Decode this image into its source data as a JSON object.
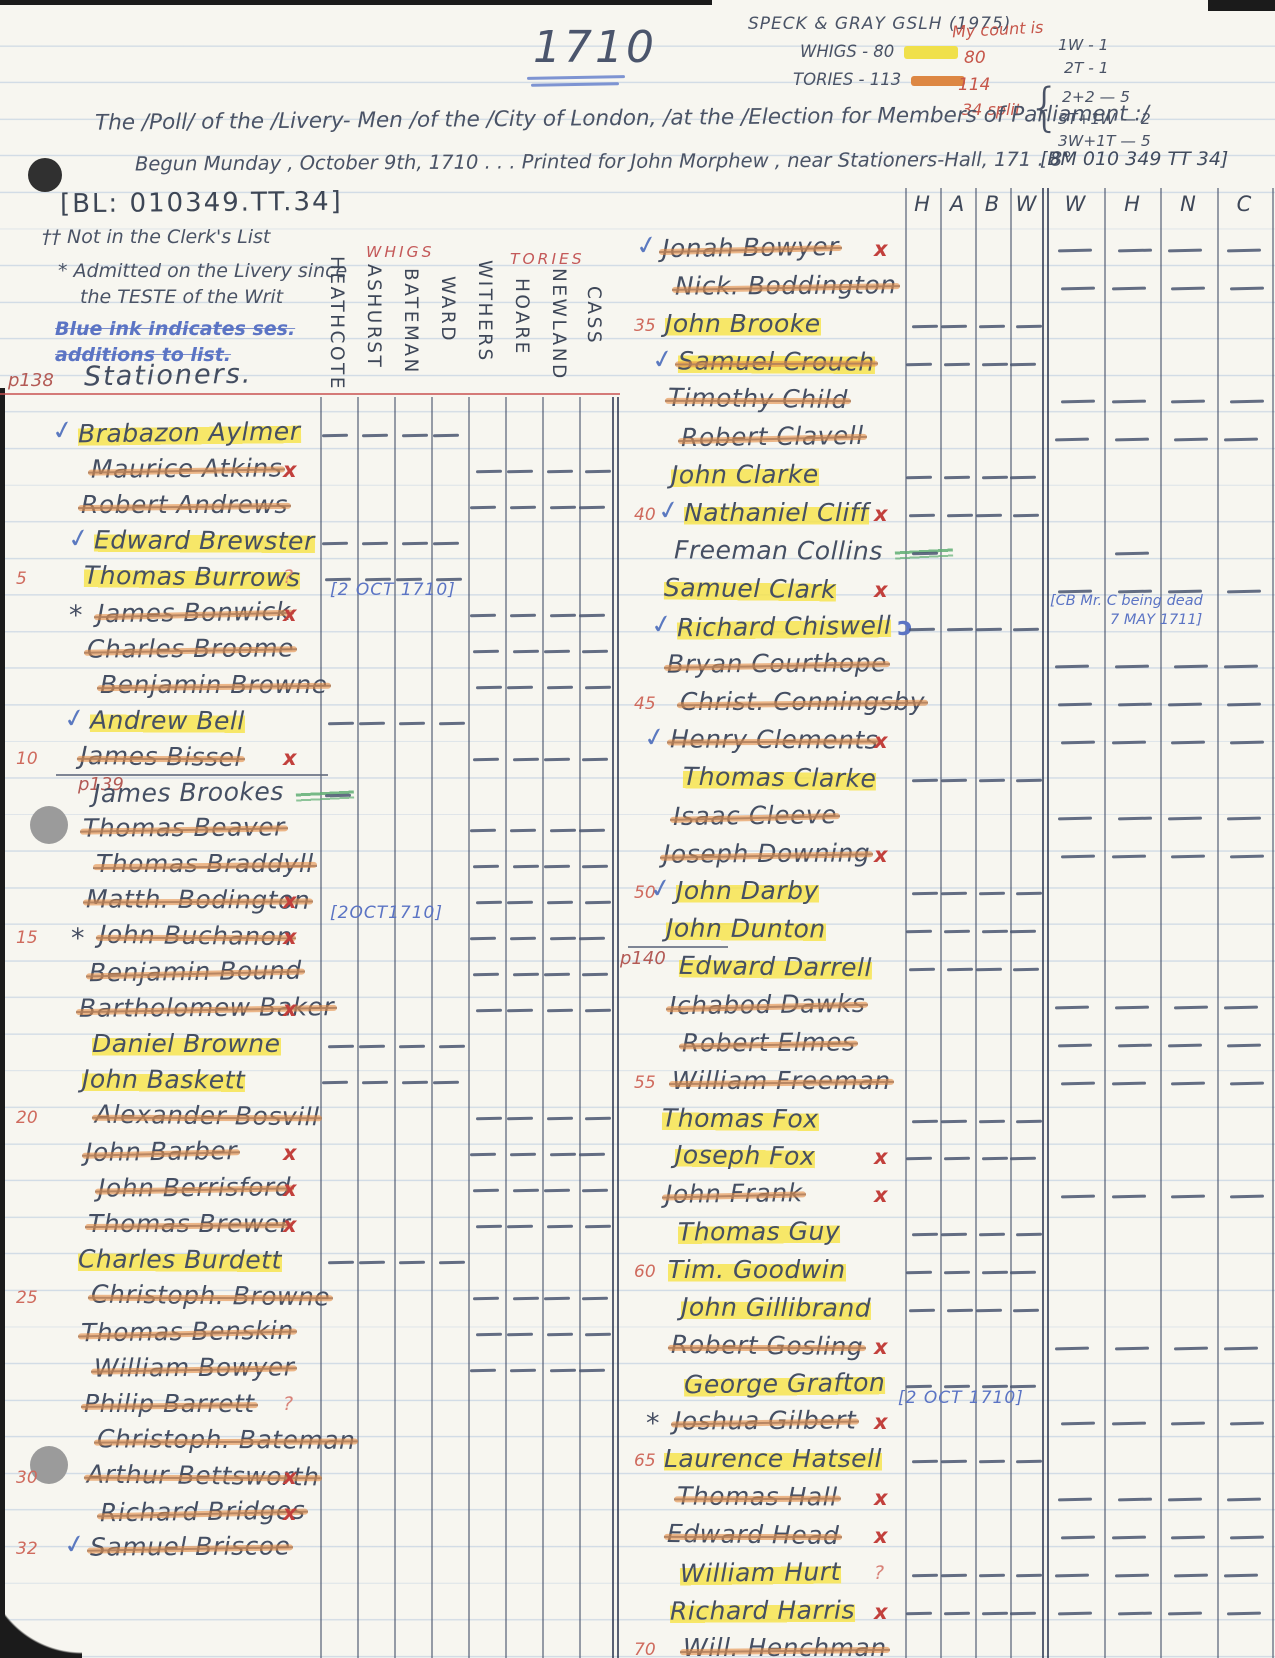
{
  "page": {
    "year_title": "1710",
    "top_right": {
      "source": "SPECK & GRAY  GSLH (1975)",
      "whigs_label": "WHIGS - 80",
      "tories_label": "TORIES - 113",
      "red_notes": [
        "My count is",
        "80",
        "114",
        "34 split"
      ],
      "brace": "{",
      "split_breakdown": [
        "2+2  — 5",
        "3T+1W  — 2",
        "3W+1T — 5"
      ],
      "pencil_tallies": [
        "1W - 1",
        "2T - 1"
      ]
    },
    "title_line1": "The /Poll/ of the /Livery- Men /of the /City of London, /at the /Election for Members of Parliament :/",
    "title_line2": "Begun Munday , October 9th, 1710 . . .  Printed for John Morphew , near Stationers-Hall, 171    . 8°",
    "title_shelfmark_bm": "[BM 010 349 TT 34]",
    "shelfmark_bl": "[BL: 010349.TT.34]",
    "legend": {
      "dagger_note": "†† Not in the Clerk's List",
      "star_note_line1": "* Admitted on the Livery since",
      "star_note_line2": "the TESTE of the Writ",
      "blue_note_line1": "Blue ink indicates ses.",
      "blue_note_line2": "additions to list."
    },
    "page_label": "p138",
    "company": "Stationers.",
    "whig_header": "WHIGS",
    "tory_header": "TORIES",
    "whig_candidates": [
      "HEATHCOTE",
      "ASHURST",
      "BATEMAN",
      "WARD"
    ],
    "tory_candidates": [
      "WITHERS",
      "HOARE",
      "NEWLAND",
      "CASS"
    ],
    "right_grid_headers_narrow": [
      "H",
      "A",
      "B",
      "W"
    ],
    "right_grid_headers_wide": [
      "W",
      "H",
      "N",
      "C"
    ],
    "chiswell_note": [
      "[CB Mr. C being dead",
      "7 MAY 1711]"
    ]
  },
  "colors": {
    "yellow_highlight": "#f4e24f",
    "orange_strike": "#e2873f",
    "red_ink": "#c2403c",
    "blue_ink": "#5b74c4",
    "green_mark": "#5fae73",
    "pencil": "#49536a"
  },
  "voters_left": [
    {
      "name": "Brabazon Aylmer",
      "ck": 1,
      "hl": 1,
      "v": "W"
    },
    {
      "name": "Maurice Atkins",
      "st": 1,
      "mk": "x",
      "v": "T"
    },
    {
      "name": "Robert Andrews",
      "st": 1,
      "v": "T"
    },
    {
      "name": "Edward Brewster",
      "ck": 1,
      "hl": 1,
      "v": "W"
    },
    {
      "n": "5",
      "name": "Thomas Burrows",
      "hl": 1,
      "mk": "?",
      "v": "W"
    },
    {
      "name": "James Bonwick",
      "star": 1,
      "st": 1,
      "mk": "x",
      "v": "T",
      "note": "[2 OCT 1710]"
    },
    {
      "name": "Charles Broome",
      "st": 1,
      "v": "T"
    },
    {
      "name": "Benjamin Browne",
      "st": 1,
      "v": "T"
    },
    {
      "name": "Andrew Bell",
      "ck": 1,
      "hl": 1,
      "v": "W"
    },
    {
      "n": "10",
      "name": "James Bissel",
      "st": 1,
      "mk": "x",
      "ul": 1,
      "v": "T"
    },
    {
      "p": "p139",
      "name": "James Brookes",
      "gr": 1,
      "v": [
        1,
        0,
        0,
        0,
        0,
        0,
        0,
        0
      ]
    },
    {
      "name": "Thomas Beaver",
      "st": 1,
      "v": "T"
    },
    {
      "name": "Thomas Braddyll",
      "st": 1,
      "v": "T"
    },
    {
      "name": "Matth. Bodington",
      "st": 1,
      "mk": "x",
      "v": "T"
    },
    {
      "n": "15",
      "name": "John Buchanon",
      "star": 1,
      "st": 1,
      "mk": "x",
      "v": "T",
      "note": "[2OCT1710]"
    },
    {
      "name": "Benjamin Bound",
      "st": 1,
      "v": "T"
    },
    {
      "name": "Bartholomew Baker",
      "st": 1,
      "mk": "x",
      "v": "T"
    },
    {
      "name": "Daniel Browne",
      "hl": 1,
      "v": "W"
    },
    {
      "name": "John Baskett",
      "hl": 1,
      "v": "W"
    },
    {
      "n": "20",
      "name": "Alexander Bosvill",
      "st": 1,
      "v": "T"
    },
    {
      "name": "John Barber",
      "st": 1,
      "mk": "x",
      "v": "T"
    },
    {
      "name": "John Berrisford",
      "st": 1,
      "mk": "x",
      "v": "T"
    },
    {
      "name": "Thomas Brewer",
      "st": 1,
      "mk": "x",
      "v": "T"
    },
    {
      "name": "Charles Burdett",
      "hl": 1,
      "v": "W"
    },
    {
      "n": "25",
      "name": "Christoph. Browne",
      "st": 1,
      "v": "T"
    },
    {
      "name": "Thomas Benskin",
      "st": 1,
      "v": "T"
    },
    {
      "name": "William Bowyer",
      "st": 1,
      "v": "T"
    },
    {
      "name": "Philip Barrett",
      "st": 1,
      "mk": "?",
      "v": "N"
    },
    {
      "name": "Christoph. Bateman",
      "st": 1,
      "v": "N"
    },
    {
      "n": "30",
      "name": "Arthur Bettsworth",
      "st": 1,
      "mk": "x",
      "v": "N"
    },
    {
      "name": "Richard Bridges",
      "st": 1,
      "mk": "x",
      "v": "N"
    },
    {
      "n": "32",
      "name": "Samuel Briscoe",
      "ck": 1,
      "st": 1,
      "v": "N"
    }
  ],
  "voters_right": [
    {
      "name": "Jonah Bowyer",
      "ck": 1,
      "st": 1,
      "mk": "x",
      "v": "T"
    },
    {
      "name": "Nick. Boddington",
      "st": 1,
      "v": "T"
    },
    {
      "n": "35",
      "name": "John Brooke",
      "hl": 1,
      "v": "W"
    },
    {
      "name": "Samuel Crouch",
      "ck": 1,
      "hl": 1,
      "st": 1,
      "v": "W"
    },
    {
      "name": "Timothy Child",
      "st": 1,
      "v": "T"
    },
    {
      "name": "Robert Clavell",
      "st": 1,
      "v": "T"
    },
    {
      "name": "John Clarke",
      "hl": 1,
      "v": "W"
    },
    {
      "n": "40",
      "name": "Nathaniel Cliff",
      "ck": 1,
      "hl": 1,
      "mk": "x",
      "v": "W"
    },
    {
      "name": "Freeman Collins",
      "gr": 1,
      "v": [
        1,
        0,
        0,
        0,
        0,
        1,
        0,
        0
      ]
    },
    {
      "name": "Samuel Clark",
      "hl": 1,
      "mk": "x",
      "v": "T"
    },
    {
      "name": "Richard Chiswell",
      "ck": 1,
      "hl": 1,
      "bm": 1,
      "v": "W",
      "cb": 1
    },
    {
      "name": "Bryan Courthope",
      "st": 1,
      "v": "T"
    },
    {
      "n": "45",
      "name": "Christ. Conningsby",
      "st": 1,
      "v": "T"
    },
    {
      "name": "Henry Clements",
      "ck": 1,
      "st": 1,
      "mk": "x",
      "v": "T"
    },
    {
      "name": "Thomas Clarke",
      "hl": 1,
      "v": "W"
    },
    {
      "name": "Isaac Cleeve",
      "st": 1,
      "v": "T"
    },
    {
      "name": "Joseph Downing",
      "st": 1,
      "mk": "x",
      "v": "T"
    },
    {
      "n": "50",
      "name": "John Darby",
      "ck": 1,
      "hl": 1,
      "v": "W"
    },
    {
      "name": "John Dunton",
      "hl": 1,
      "ul": 1,
      "v": "W"
    },
    {
      "p": "p140",
      "name": "Edward Darrell",
      "hl": 1,
      "v": "W"
    },
    {
      "name": "Ichabod Dawks",
      "st": 1,
      "v": "T"
    },
    {
      "name": "Robert Elmes",
      "st": 1,
      "v": "T"
    },
    {
      "n": "55",
      "name": "William Freeman",
      "st": 1,
      "v": "T"
    },
    {
      "name": "Thomas Fox",
      "hl": 1,
      "v": "W"
    },
    {
      "name": "Joseph Fox",
      "hl": 1,
      "mk": "x",
      "v": "W"
    },
    {
      "name": "John Frank",
      "st": 1,
      "mk": "x",
      "v": "T"
    },
    {
      "name": "Thomas Guy",
      "hl": 1,
      "v": "W"
    },
    {
      "n": "60",
      "name": "Tim. Goodwin",
      "hl": 1,
      "v": "W"
    },
    {
      "name": "John Gillibrand",
      "hl": 1,
      "v": "W"
    },
    {
      "name": "Robert Gosling",
      "st": 1,
      "mk": "x",
      "v": "T"
    },
    {
      "name": "George Grafton",
      "hl": 1,
      "v": "W"
    },
    {
      "name": "Joshua Gilbert",
      "star": 1,
      "st": 1,
      "mk": "x",
      "v": "T",
      "note": "[2 OCT 1710]"
    },
    {
      "n": "65",
      "name": "Laurence Hatsell",
      "hl": 1,
      "v": "W"
    },
    {
      "name": "Thomas Hall",
      "st": 1,
      "mk": "x",
      "v": "T"
    },
    {
      "name": "Edward Head",
      "st": 1,
      "mk": "x",
      "v": "T"
    },
    {
      "name": "William Hurt",
      "hl": 1,
      "mk": "?",
      "v": "A"
    },
    {
      "name": "Richard Harris",
      "hl": 1,
      "mk": "x",
      "v": "A"
    },
    {
      "n": "70",
      "name": "Will. Henchman",
      "st": 1,
      "v": "N"
    }
  ]
}
